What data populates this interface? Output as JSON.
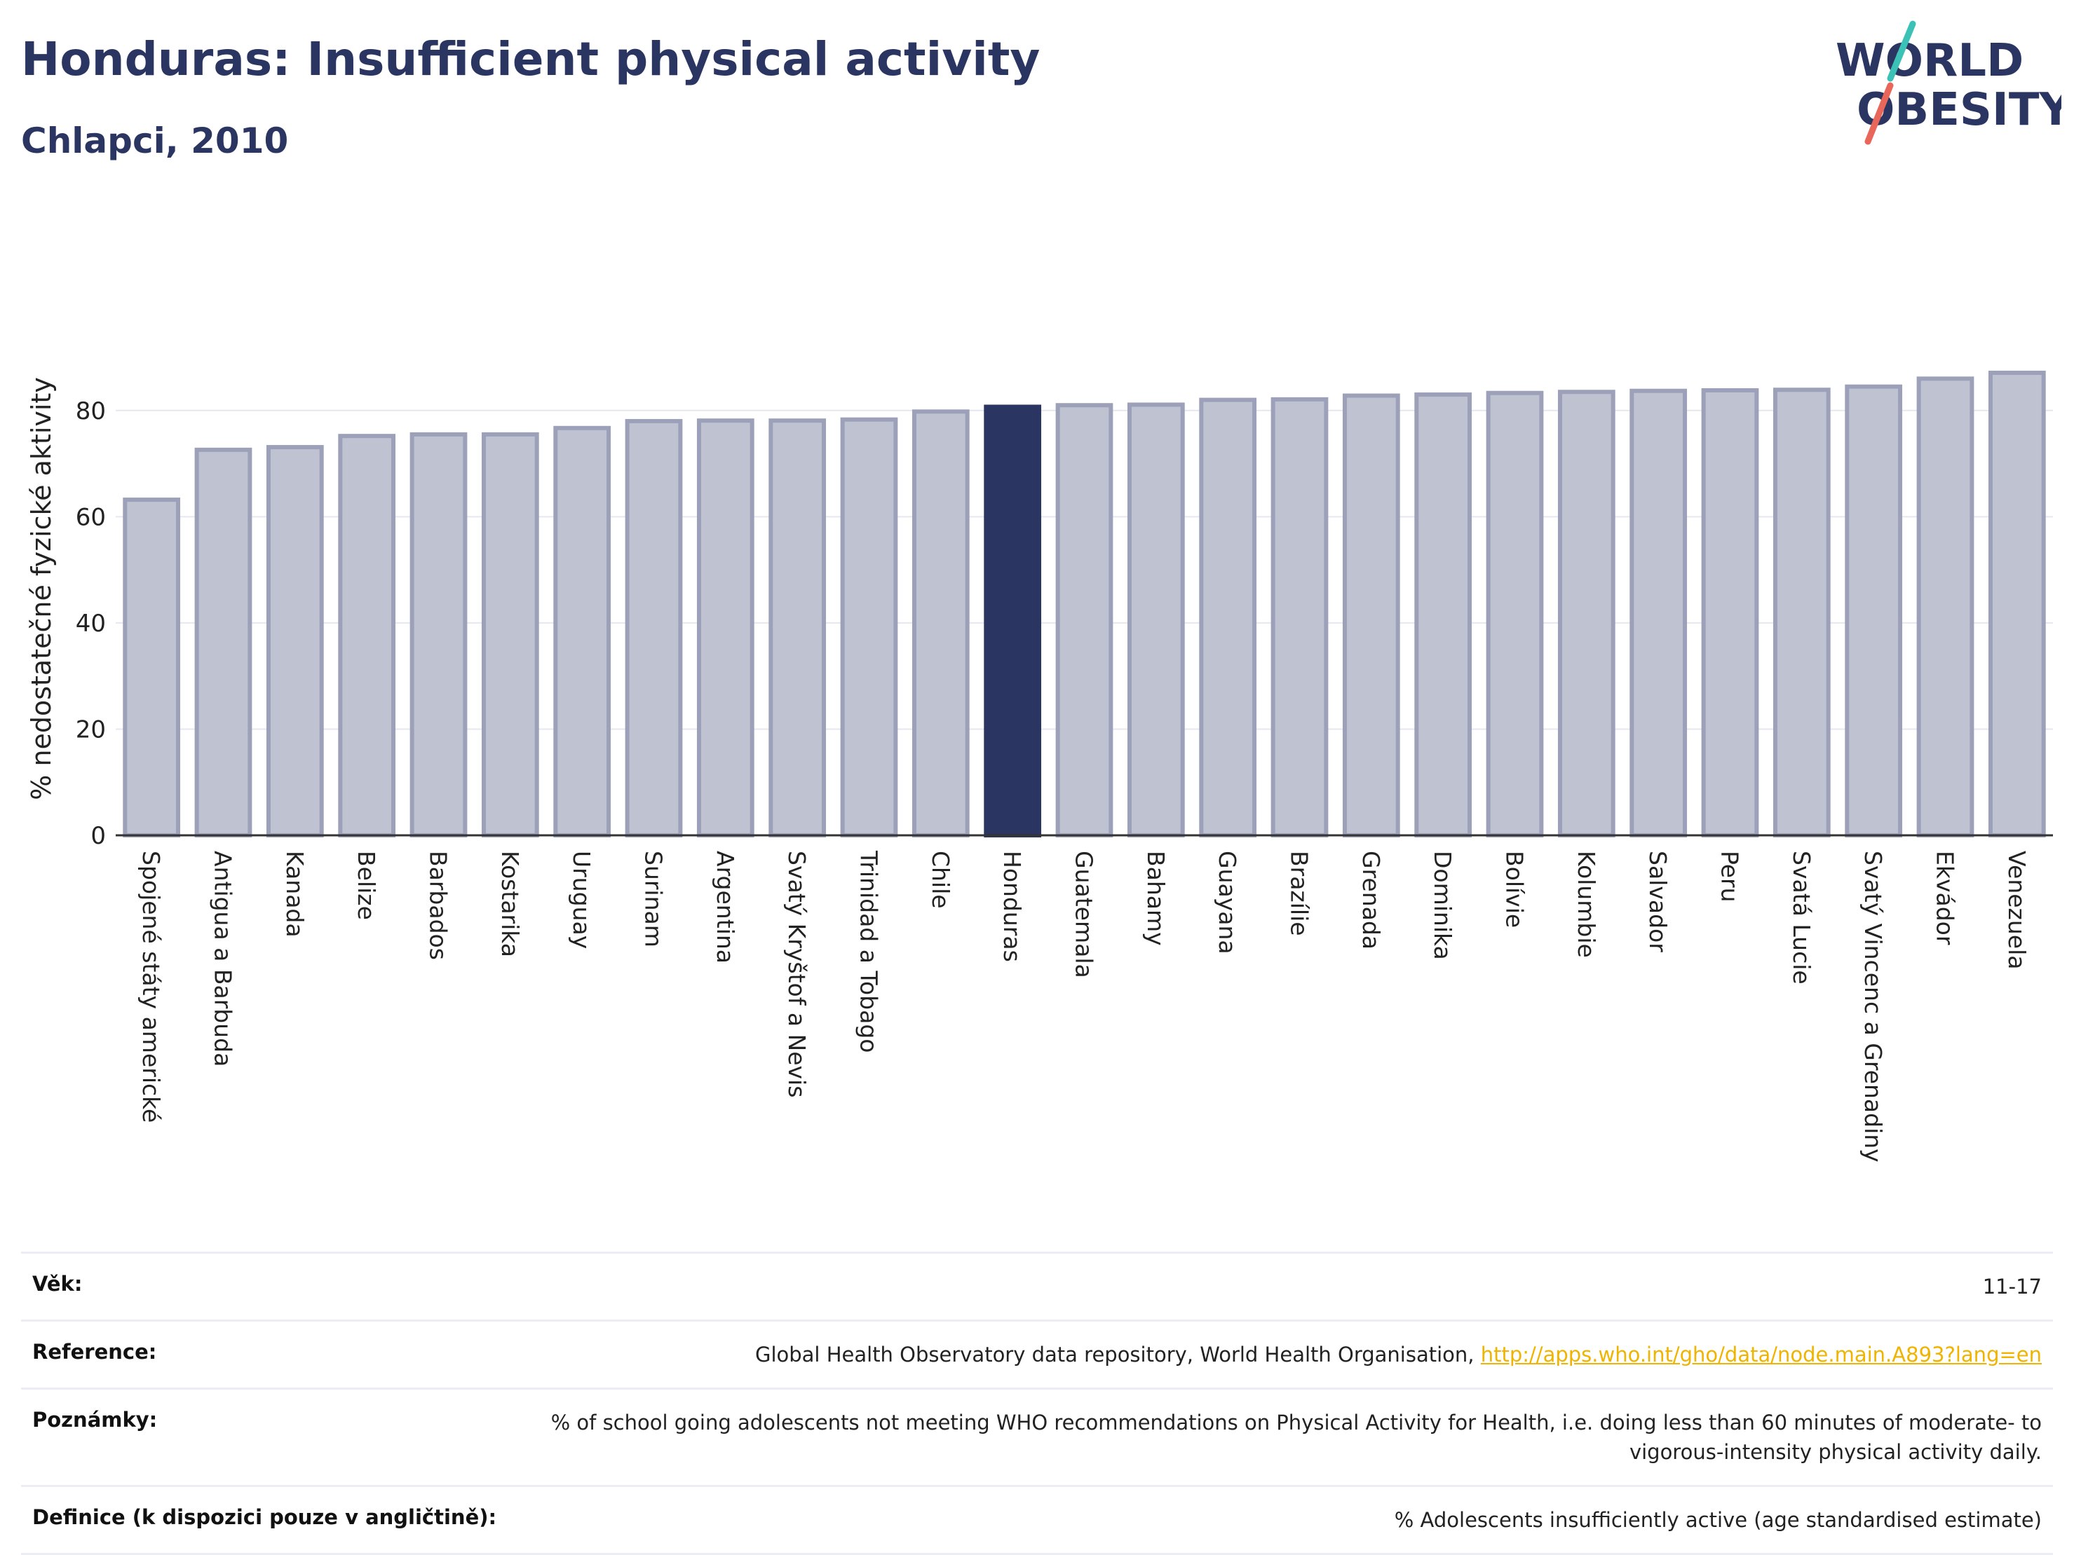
{
  "header": {
    "title": "Honduras: Insufficient physical activity",
    "subtitle": "Chlapci, 2010"
  },
  "logo": {
    "line1": "WORLD",
    "line2": "OBESITY",
    "text_color": "#2b3562",
    "slash_top_color": "#3cc1b6",
    "slash_bottom_color": "#e8665a"
  },
  "colors": {
    "bar_default_fill": "#bfc2d0",
    "bar_default_stroke": "#9ca1b9",
    "bar_highlight": "#2b3562",
    "grid": "#e6e7ef",
    "axis": "#333333"
  },
  "chart_data": {
    "type": "bar",
    "ylabel": "% nedostatečné fyzické aktivity",
    "ylim": [
      0,
      90
    ],
    "yticks": [
      0,
      20,
      40,
      60,
      80
    ],
    "grid": true,
    "highlight": "Honduras",
    "categories": [
      "Spojené státy americké",
      "Antigua a Barbuda",
      "Kanada",
      "Belize",
      "Barbados",
      "Kostarika",
      "Uruguay",
      "Surinam",
      "Argentina",
      "Svatý Kryštof a Nevis",
      "Trinidad a Tobago",
      "Chile",
      "Honduras",
      "Guatemala",
      "Bahamy",
      "Guayana",
      "Brazílie",
      "Grenada",
      "Dominika",
      "Bolívie",
      "Kolumbie",
      "Salvador",
      "Peru",
      "Svatá Lucie",
      "Svatý Vincenc a Grenadiny",
      "Ekvádor",
      "Venezuela"
    ],
    "values": [
      63.2,
      72.6,
      73.1,
      75.2,
      75.5,
      75.5,
      76.7,
      78.0,
      78.1,
      78.1,
      78.3,
      79.8,
      80.7,
      81.0,
      81.1,
      82.0,
      82.1,
      82.8,
      83.0,
      83.3,
      83.5,
      83.7,
      83.8,
      83.9,
      84.5,
      86.0,
      87.1
    ]
  },
  "meta": {
    "age_label": "Věk:",
    "age_value": "11-17",
    "reference_label": "Reference:",
    "reference_text": "Global Health Observatory data repository, World Health Organisation, ",
    "reference_link": "http://apps.who.int/gho/data/node.main.A893?lang=en",
    "notes_label": "Poznámky:",
    "notes_value": "% of school going adolescents not meeting WHO recommendations on Physical Activity for Health, i.e. doing less than 60 minutes of moderate- to vigorous-intensity physical activity daily.",
    "definition_label": "Definice (k dispozici pouze v angličtině):",
    "definition_value": "% Adolescents insufficiently active (age standardised estimate)"
  }
}
